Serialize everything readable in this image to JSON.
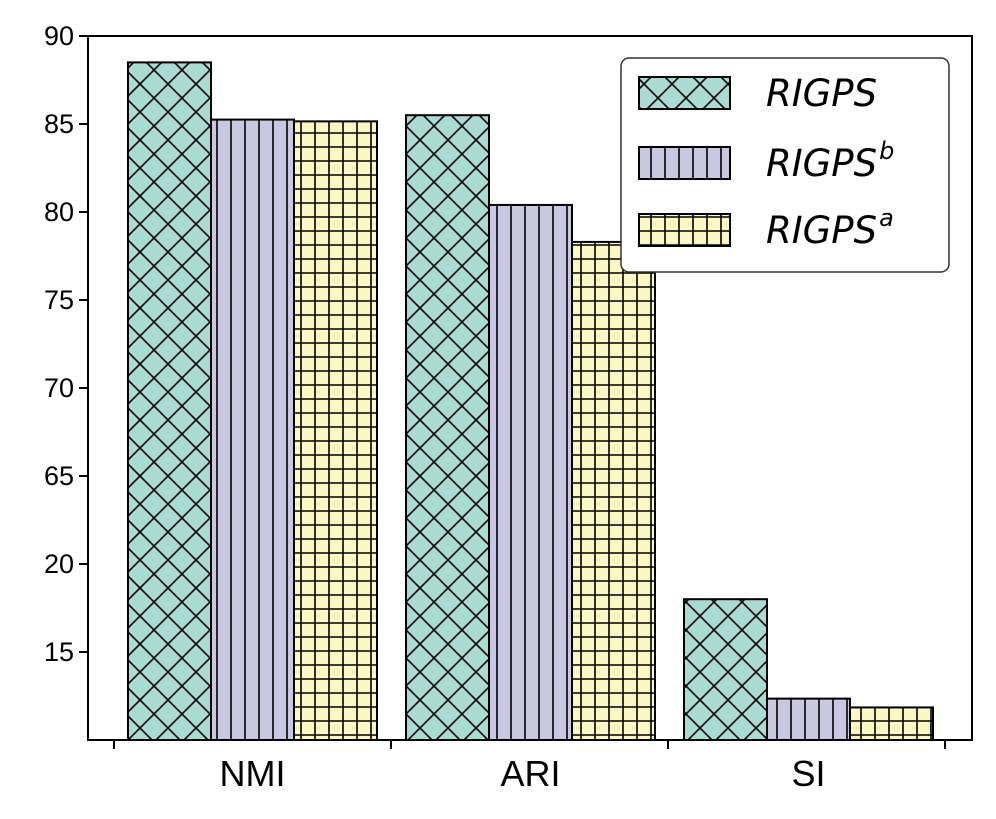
{
  "chart_data": {
    "type": "bar",
    "categories": [
      "NMI",
      "ARI",
      "SI"
    ],
    "y_tick_labels": [
      "15",
      "20",
      "65",
      "70",
      "75",
      "80",
      "85",
      "90"
    ],
    "ylim": [
      10,
      90
    ],
    "grid": false,
    "legend_position": "top-right",
    "series": [
      {
        "name": "RIGPS",
        "name_sup": "",
        "values": [
          87.0,
          81.0,
          26.0
        ],
        "color": "#a8dbd1",
        "hatch": "crosshatch"
      },
      {
        "name": "RIGPS",
        "name_sup": "b",
        "values": [
          80.5,
          70.8,
          14.7
        ],
        "color": "#c9c8e0",
        "hatch": "vertical"
      },
      {
        "name": "RIGPS",
        "name_sup": "a",
        "values": [
          80.3,
          66.6,
          13.7
        ],
        "color": "#fbf8c3",
        "hatch": "grid"
      }
    ]
  }
}
